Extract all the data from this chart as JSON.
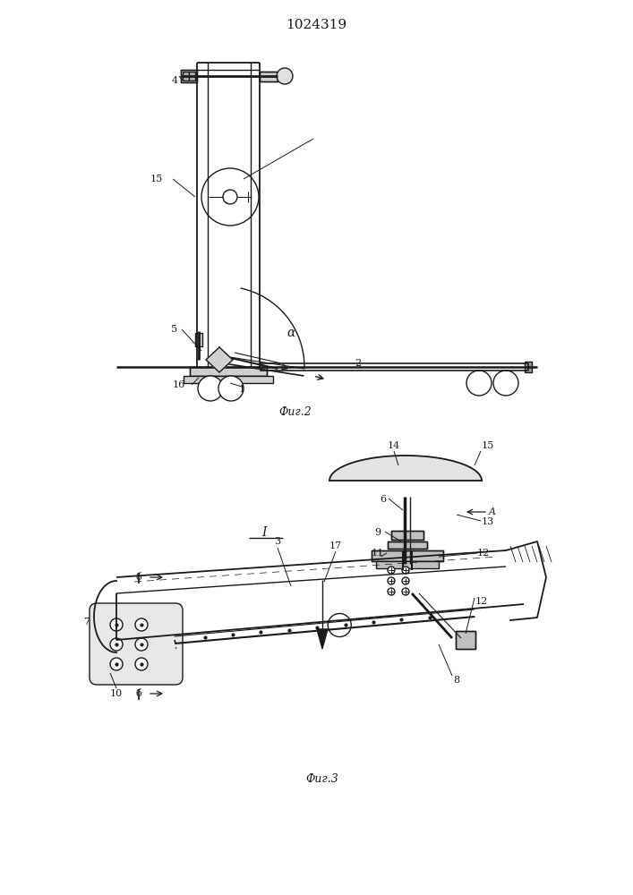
{
  "title": "1024319",
  "fig2_label": "Фиг.2",
  "fig3_label": "Фиг.3",
  "bg_color": "#ffffff",
  "line_color": "#1a1a1a",
  "lw": 1.0
}
